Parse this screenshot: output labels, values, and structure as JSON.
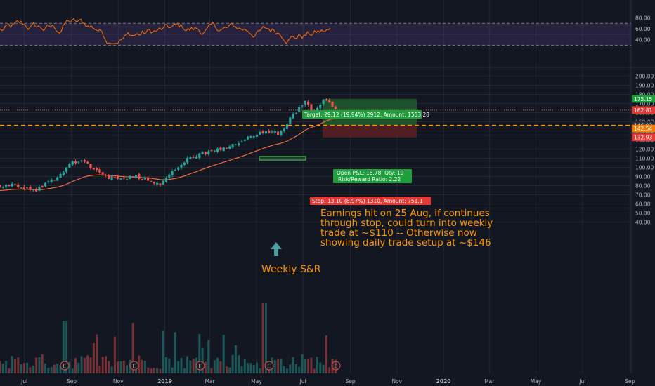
{
  "chart_data": {
    "type": "candlestick",
    "title": "",
    "x_ticks": [
      "Jul",
      "Sep",
      "Nov",
      "2019",
      "Mar",
      "May",
      "Jul",
      "Sep",
      "Nov",
      "2020",
      "Mar",
      "May",
      "Jul",
      "Sep"
    ],
    "price_axis": {
      "ticks": [
        "200.00",
        "190.00",
        "180.00",
        "170.00",
        "160.00",
        "150.00",
        "140.00",
        "130.00",
        "120.00",
        "110.00",
        "100.00",
        "90.00",
        "80.00",
        "70.00",
        "60.00",
        "50.00",
        "40.00"
      ],
      "ylim": [
        36,
        204
      ]
    },
    "rsi_axis": {
      "ticks": [
        "80.00",
        "60.00",
        "40.00"
      ],
      "bands": [
        70,
        30
      ]
    },
    "price_badges": {
      "target": "175.15",
      "current": "162.81",
      "entry": "146.03",
      "entry_secondary": "142.54",
      "stop": "132.93"
    },
    "current_price": 162.81,
    "entry_price": 146.03,
    "target_price": 175.15,
    "stop_price": 132.93,
    "position": {
      "target_label": "Target: 29.12 (19.94%) 2912, Amount: 1553.28",
      "stop_label": "Stop: 13.10 (8.97%) 1310, Amount: 751.1",
      "pnl_label": "Open P&L: 16.78, Qty: 19",
      "rr_label": "Risk/Reward Ratio: 2.22"
    },
    "support_zone": {
      "low": 108,
      "high": 112,
      "label": "Weekly S&R"
    },
    "earnings_marker": "E",
    "price_path": [
      [
        "2018-06-15",
        80
      ],
      [
        "2018-07-15",
        75
      ],
      [
        "2018-08-15",
        90
      ],
      [
        "2018-09-01",
        106
      ],
      [
        "2018-09-15",
        108
      ],
      [
        "2018-10-10",
        92
      ],
      [
        "2018-11-01",
        86
      ],
      [
        "2018-11-20",
        91
      ],
      [
        "2018-12-05",
        88
      ],
      [
        "2018-12-25",
        82
      ],
      [
        "2019-01-10",
        95
      ],
      [
        "2019-02-05",
        112
      ],
      [
        "2019-03-01",
        117
      ],
      [
        "2019-03-20",
        120
      ],
      [
        "2019-04-10",
        128
      ],
      [
        "2019-05-10",
        140
      ],
      [
        "2019-06-01",
        137
      ],
      [
        "2019-06-20",
        160
      ],
      [
        "2019-07-05",
        172
      ],
      [
        "2019-07-15",
        158
      ],
      [
        "2019-07-29",
        176
      ],
      [
        "2019-08-10",
        164
      ],
      [
        "2019-08-15",
        162.81
      ]
    ]
  },
  "annotations": {
    "note": "Earnings hit on 25 Aug, if continues through stop, could turn into weekly trade at ~$110 -- Otherwise now showing daily trade setup at ~$146",
    "support_label": "Weekly S&R"
  },
  "colors": {
    "background": "#131722",
    "up": "#26a69a",
    "down": "#ef5350",
    "rsi_line": "#ff6d00",
    "rsi_band": "#7e57c2",
    "ma": "#ff7043",
    "target_zone": "#1f5c2b",
    "stop_zone": "#5c1f22",
    "annotation": "#ff9800",
    "entry_line": "#ff9800"
  }
}
